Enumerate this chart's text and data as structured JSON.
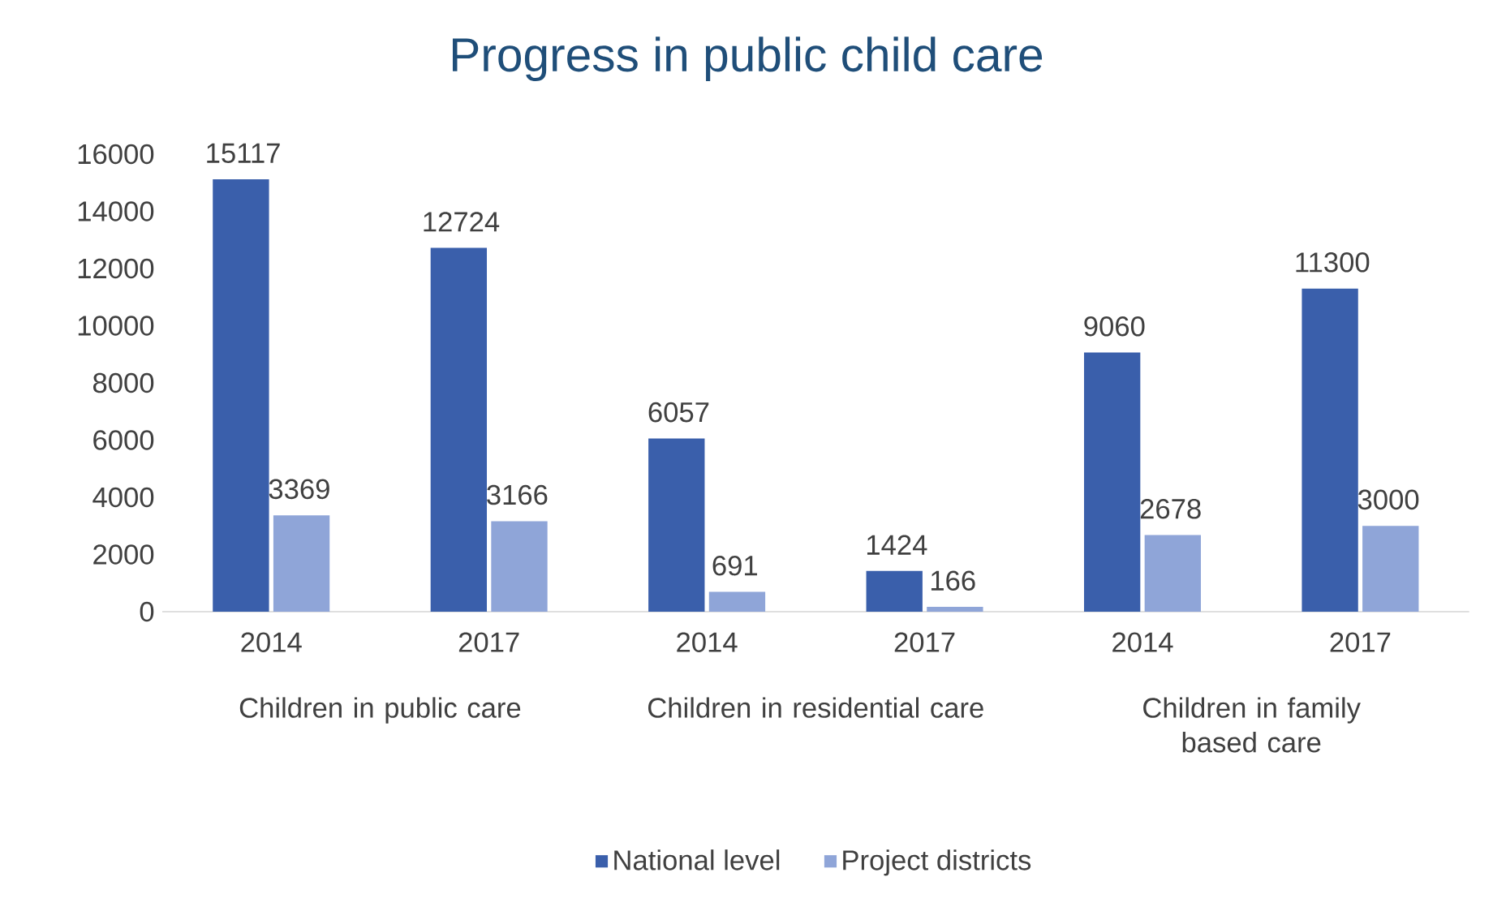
{
  "chart_data": {
    "type": "bar",
    "title": "Progress in public child care",
    "categories": [
      "2014",
      "2017",
      "2014",
      "2017",
      "2014",
      "2017"
    ],
    "series": [
      {
        "name": "National level",
        "color": "#3a5fab",
        "values": [
          15117,
          12724,
          6057,
          1424,
          9060,
          11300
        ]
      },
      {
        "name": "Project districts",
        "color": "#8fa5d8",
        "values": [
          3369,
          3166,
          691,
          166,
          2678,
          3000
        ]
      }
    ],
    "annotations": [
      "Children in public care",
      "Children in residential  care",
      "Children in family based care"
    ],
    "ylim": [
      0,
      16000
    ],
    "yticks": [
      0,
      2000,
      4000,
      6000,
      8000,
      10000,
      12000,
      14000,
      16000
    ],
    "data_labels": true,
    "legend": "bottom"
  }
}
